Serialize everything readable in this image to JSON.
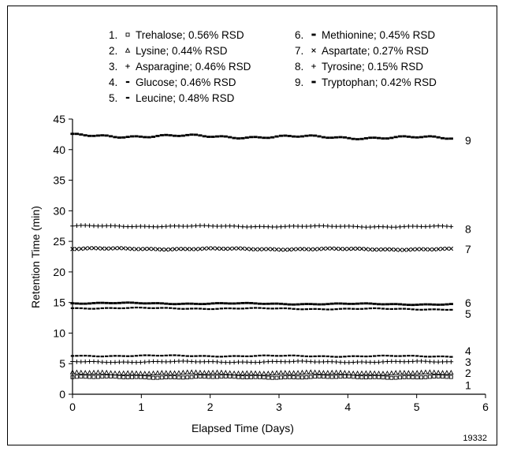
{
  "chart_data": {
    "type": "scatter",
    "xlabel": "Elapsed Time (Days)",
    "ylabel": "Retention Time (min)",
    "xlim": [
      0,
      6
    ],
    "ylim": [
      0,
      45
    ],
    "xticks": [
      "0",
      "1",
      "2",
      "3",
      "4",
      "5",
      "6"
    ],
    "yticks": [
      "0",
      "5",
      "10",
      "15",
      "20",
      "25",
      "30",
      "35",
      "40",
      "45"
    ],
    "grid": false,
    "legend_placement": "top",
    "figure_number": "19332",
    "x_range_data": [
      0,
      5.5
    ],
    "series": [
      {
        "id": "1",
        "legend_text": "Trehalose; 0.56% RSD",
        "marker": "□",
        "y": 2.8,
        "values": [
          2.8,
          2.8
        ]
      },
      {
        "id": "2",
        "legend_text": "Lysine; 0.44% RSD",
        "marker": "▲",
        "y": 3.5,
        "values": [
          3.5,
          3.5
        ]
      },
      {
        "id": "3",
        "legend_text": "Asparagine; 0.46% RSD",
        "marker": "+",
        "y": 5.3,
        "values": [
          5.3,
          5.3
        ]
      },
      {
        "id": "4",
        "legend_text": "Glucose; 0.46% RSD",
        "marker": "-",
        "y": 6.3,
        "values": [
          6.3,
          6.2
        ]
      },
      {
        "id": "5",
        "legend_text": "Leucine; 0.48% RSD",
        "marker": "-",
        "y": 14.1,
        "values": [
          14.1,
          13.9
        ]
      },
      {
        "id": "6",
        "legend_text": "Methionine; 0.45% RSD",
        "marker": "–",
        "y": 14.9,
        "values": [
          14.9,
          14.7
        ]
      },
      {
        "id": "7",
        "legend_text": "Aspartate; 0.27% RSD",
        "marker": "×",
        "y": 23.8,
        "values": [
          23.8,
          23.7
        ]
      },
      {
        "id": "8",
        "legend_text": "Tyrosine; 0.15% RSD",
        "marker": "+",
        "y": 27.5,
        "values": [
          27.5,
          27.4
        ]
      },
      {
        "id": "9",
        "legend_text": "Tryptophan; 0.42% RSD",
        "marker": "–",
        "y": 42.0,
        "values": [
          42.3,
          41.9
        ]
      }
    ]
  }
}
